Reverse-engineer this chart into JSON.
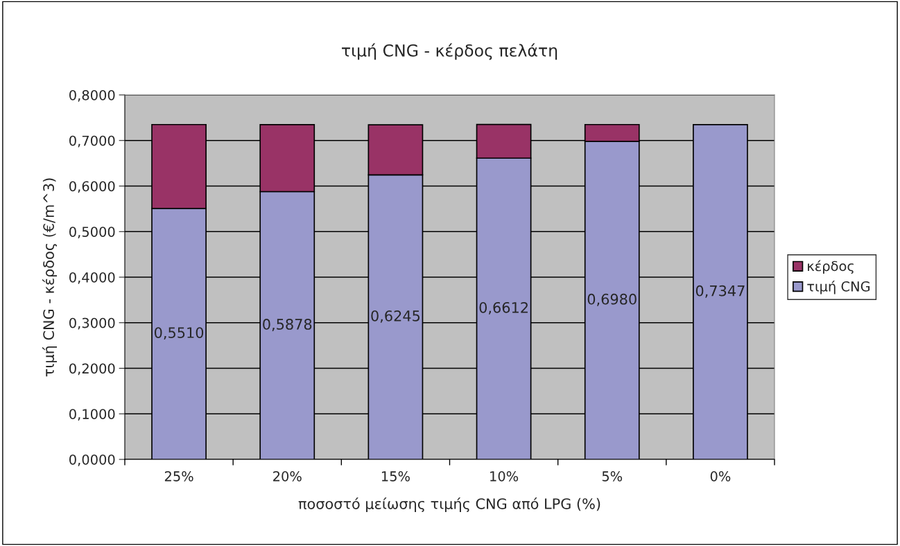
{
  "chart_data": {
    "type": "bar",
    "title": "τιμή CNG - κέρδος πελάτη",
    "xlabel": "ποσοστό μείωσης τιμής CNG από LPG (%)",
    "ylabel": "τιμή CNG - κέρδος (€/m^3)",
    "categories": [
      "25%",
      "20%",
      "15%",
      "10%",
      "5%",
      "0%"
    ],
    "stacked": true,
    "series": [
      {
        "name": "τιμή CNG",
        "color": "#9999cc",
        "values": [
          0.551,
          0.5878,
          0.6245,
          0.6612,
          0.698,
          0.7347
        ],
        "value_labels": [
          "0,5510",
          "0,5878",
          "0,6245",
          "0,6612",
          "0,6980",
          "0,7347"
        ]
      },
      {
        "name": "κέρδος",
        "color": "#993366",
        "values": [
          0.184,
          0.147,
          0.11,
          0.074,
          0.037,
          null
        ]
      }
    ],
    "ylim": [
      0,
      0.8
    ],
    "yticks": [
      {
        "value": 0,
        "label": "0,0000"
      },
      {
        "value": 0.1,
        "label": "0,1000"
      },
      {
        "value": 0.2,
        "label": "0,2000"
      },
      {
        "value": 0.3,
        "label": "0,3000"
      },
      {
        "value": 0.4,
        "label": "0,4000"
      },
      {
        "value": 0.5,
        "label": "0,5000"
      },
      {
        "value": 0.6,
        "label": "0,6000"
      },
      {
        "value": 0.7,
        "label": "0,7000"
      },
      {
        "value": 0.8,
        "label": "0,8000"
      }
    ],
    "grid": "y",
    "legend": "right"
  }
}
